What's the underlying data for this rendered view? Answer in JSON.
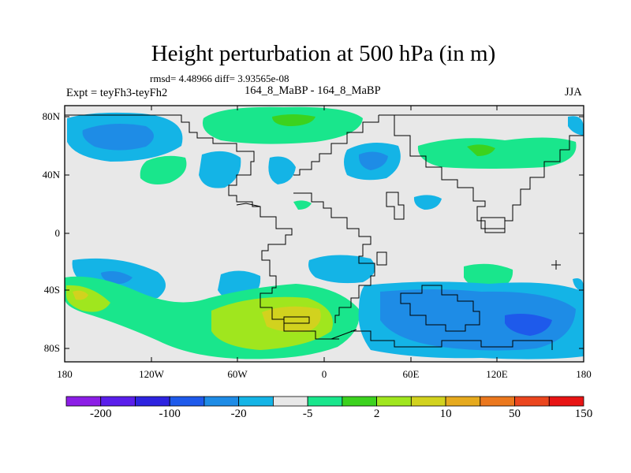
{
  "header": {
    "title": "Height perturbation at 500 hPa (in m)",
    "stats": "rmsd= 4.48966 diff= 3.93565e-08",
    "experiment": "Expt = teyFh3-teyFh2",
    "center_label": "164_8_MaBP - 164_8_MaBP",
    "season": "JJA"
  },
  "map": {
    "lat_ticks": [
      "80N",
      "40N",
      "0",
      "40S",
      "80S"
    ],
    "lon_ticks": [
      "180",
      "120W",
      "60W",
      "0",
      "60E",
      "120E",
      "180"
    ],
    "background_color": "#e8e8e8"
  },
  "colorbar": {
    "colors": [
      "#8c1ee6",
      "#5a1eeb",
      "#2d23e0",
      "#1e5aeb",
      "#1e8ce6",
      "#14b4e6",
      "#e8e8e8",
      "#19e68c",
      "#3cd21e",
      "#a0e61e",
      "#d2d21e",
      "#e6aa1e",
      "#eb781e",
      "#eb461e",
      "#e81414"
    ],
    "labels": [
      "-200",
      "-100",
      "-20",
      "-5",
      "2",
      "10",
      "50",
      "150"
    ]
  }
}
